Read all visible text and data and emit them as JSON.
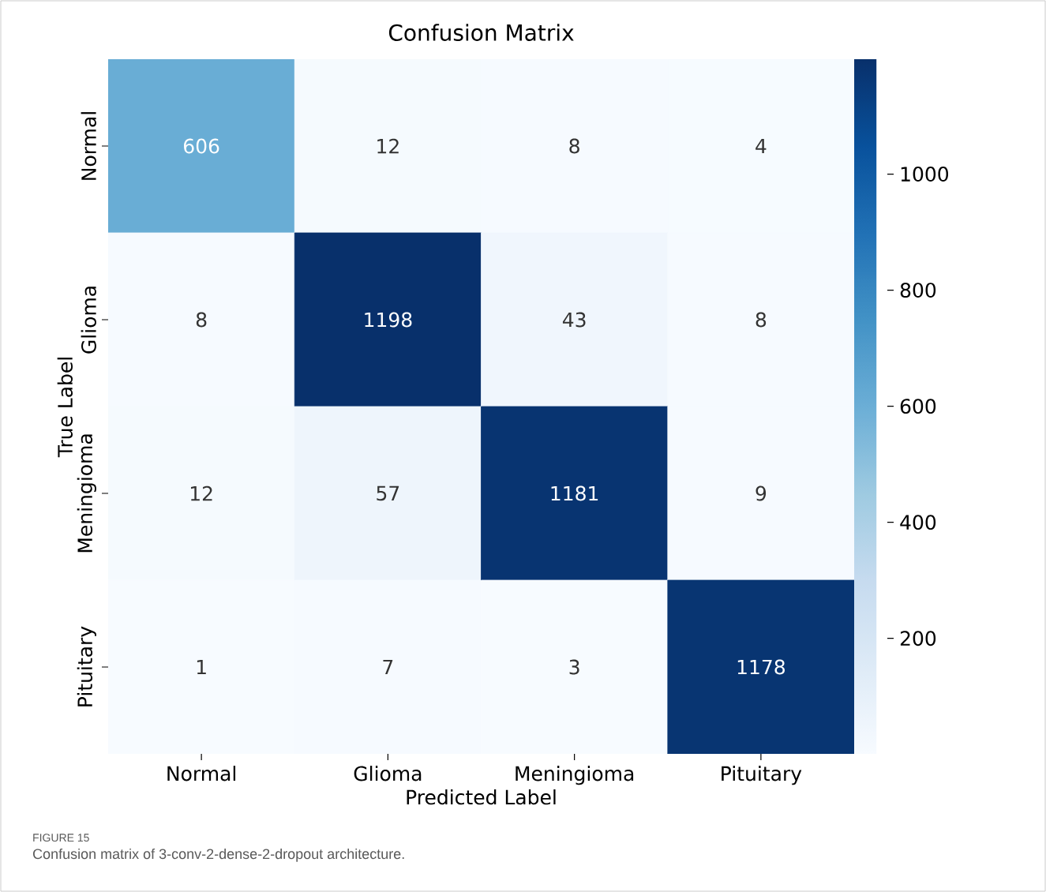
{
  "chart_data": {
    "type": "heatmap",
    "title": "Confusion Matrix",
    "xlabel": "Predicted Label",
    "ylabel": "True Label",
    "categories": [
      "Normal",
      "Glioma",
      "Meningioma",
      "Pituitary"
    ],
    "y_categories": [
      "Normal",
      "Glioma",
      "Meningioma",
      "Pituitary"
    ],
    "cells": [
      [
        606,
        12,
        8,
        4
      ],
      [
        8,
        1198,
        43,
        8
      ],
      [
        12,
        57,
        1181,
        9
      ],
      [
        1,
        7,
        3,
        1178
      ]
    ],
    "data_labels": true,
    "clim": [
      1,
      1198
    ],
    "cticks": [
      200,
      400,
      600,
      800,
      1000
    ],
    "annotations": [
      "FIGURE 15",
      "Confusion matrix of 3-conv-2-dense-2-dropout architecture."
    ]
  }
}
